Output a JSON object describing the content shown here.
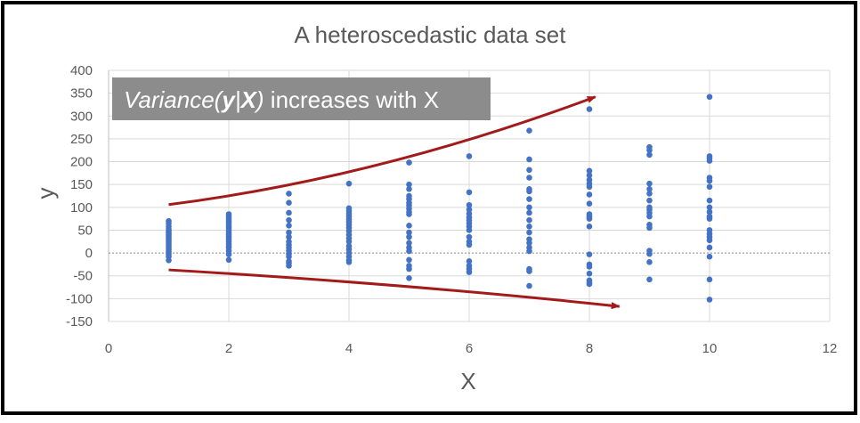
{
  "chart_data": {
    "type": "scatter",
    "title": "A heteroscedastic data set",
    "xlabel": "X",
    "ylabel": "y",
    "xlim": [
      0,
      12
    ],
    "ylim": [
      -150,
      400
    ],
    "x_ticks": [
      0,
      2,
      4,
      6,
      8,
      10,
      12
    ],
    "y_ticks": [
      -150,
      -100,
      -50,
      0,
      50,
      100,
      150,
      200,
      250,
      300,
      350,
      400
    ],
    "grid": true,
    "legend": "none",
    "annotation": {
      "prefix": "Variance(",
      "var_y": "y",
      "sep": "|",
      "var_x": "X",
      "close": ")",
      "suffix": " increases with X"
    },
    "colors": {
      "points": "#4472c4",
      "arrows": "#a31a1a",
      "annotation_box": "#8c8c8c",
      "annotation_text": "#ffffff",
      "grid": "#d9d9d9",
      "title": "#595959",
      "tick_labels": "#595959",
      "frame": "#000000"
    },
    "series": [
      {
        "values": [
          [
            1,
            70
          ],
          [
            1,
            65
          ],
          [
            1,
            58
          ],
          [
            1,
            52
          ],
          [
            1,
            48
          ],
          [
            1,
            44
          ],
          [
            1,
            40
          ],
          [
            1,
            36
          ],
          [
            1,
            32
          ],
          [
            1,
            28
          ],
          [
            1,
            24
          ],
          [
            1,
            20
          ],
          [
            1,
            16
          ],
          [
            1,
            12
          ],
          [
            1,
            8
          ],
          [
            1,
            3
          ],
          [
            1,
            -3
          ],
          [
            1,
            -8
          ],
          [
            1,
            -16
          ],
          [
            2,
            85
          ],
          [
            2,
            80
          ],
          [
            2,
            75
          ],
          [
            2,
            70
          ],
          [
            2,
            65
          ],
          [
            2,
            60
          ],
          [
            2,
            55
          ],
          [
            2,
            50
          ],
          [
            2,
            45
          ],
          [
            2,
            40
          ],
          [
            2,
            35
          ],
          [
            2,
            30
          ],
          [
            2,
            25
          ],
          [
            2,
            20
          ],
          [
            2,
            15
          ],
          [
            2,
            12
          ],
          [
            2,
            5
          ],
          [
            2,
            -3
          ],
          [
            2,
            -15
          ],
          [
            3,
            130
          ],
          [
            3,
            110
          ],
          [
            3,
            88
          ],
          [
            3,
            72
          ],
          [
            3,
            60
          ],
          [
            3,
            45
          ],
          [
            3,
            35
          ],
          [
            3,
            25
          ],
          [
            3,
            18
          ],
          [
            3,
            12
          ],
          [
            3,
            5
          ],
          [
            3,
            -2
          ],
          [
            3,
            -8
          ],
          [
            3,
            -18
          ],
          [
            3,
            -22
          ],
          [
            3,
            -28
          ],
          [
            4,
            152
          ],
          [
            4,
            98
          ],
          [
            4,
            92
          ],
          [
            4,
            86
          ],
          [
            4,
            80
          ],
          [
            4,
            74
          ],
          [
            4,
            68
          ],
          [
            4,
            62
          ],
          [
            4,
            55
          ],
          [
            4,
            48
          ],
          [
            4,
            40
          ],
          [
            4,
            32
          ],
          [
            4,
            25
          ],
          [
            4,
            15
          ],
          [
            4,
            8
          ],
          [
            4,
            0
          ],
          [
            4,
            -8
          ],
          [
            4,
            -16
          ],
          [
            4,
            -20
          ],
          [
            5,
            198
          ],
          [
            5,
            150
          ],
          [
            5,
            140
          ],
          [
            5,
            125
          ],
          [
            5,
            118
          ],
          [
            5,
            110
          ],
          [
            5,
            104
          ],
          [
            5,
            97
          ],
          [
            5,
            90
          ],
          [
            5,
            85
          ],
          [
            5,
            60
          ],
          [
            5,
            45
          ],
          [
            5,
            35
          ],
          [
            5,
            22
          ],
          [
            5,
            12
          ],
          [
            5,
            4
          ],
          [
            5,
            -15
          ],
          [
            5,
            -28
          ],
          [
            5,
            -35
          ],
          [
            5,
            -55
          ],
          [
            6,
            212
          ],
          [
            6,
            133
          ],
          [
            6,
            105
          ],
          [
            6,
            95
          ],
          [
            6,
            86
          ],
          [
            6,
            78
          ],
          [
            6,
            72
          ],
          [
            6,
            65
          ],
          [
            6,
            58
          ],
          [
            6,
            50
          ],
          [
            6,
            35
          ],
          [
            6,
            25
          ],
          [
            6,
            18
          ],
          [
            6,
            -18
          ],
          [
            6,
            -28
          ],
          [
            6,
            -35
          ],
          [
            6,
            -42
          ],
          [
            7,
            268
          ],
          [
            7,
            205
          ],
          [
            7,
            182
          ],
          [
            7,
            165
          ],
          [
            7,
            140
          ],
          [
            7,
            135
          ],
          [
            7,
            118
          ],
          [
            7,
            100
          ],
          [
            7,
            88
          ],
          [
            7,
            72
          ],
          [
            7,
            58
          ],
          [
            7,
            45
          ],
          [
            7,
            30
          ],
          [
            7,
            22
          ],
          [
            7,
            12
          ],
          [
            7,
            4
          ],
          [
            7,
            -35
          ],
          [
            7,
            -40
          ],
          [
            7,
            -72
          ],
          [
            8,
            315
          ],
          [
            8,
            180
          ],
          [
            8,
            170
          ],
          [
            8,
            160
          ],
          [
            8,
            152
          ],
          [
            8,
            145
          ],
          [
            8,
            128
          ],
          [
            8,
            108
          ],
          [
            8,
            85
          ],
          [
            8,
            80
          ],
          [
            8,
            75
          ],
          [
            8,
            58
          ],
          [
            8,
            -3
          ],
          [
            8,
            -25
          ],
          [
            8,
            -30
          ],
          [
            8,
            -45
          ],
          [
            8,
            -60
          ],
          [
            8,
            -65
          ],
          [
            8,
            -68
          ],
          [
            9,
            232
          ],
          [
            9,
            225
          ],
          [
            9,
            215
          ],
          [
            9,
            152
          ],
          [
            9,
            140
          ],
          [
            9,
            130
          ],
          [
            9,
            115
          ],
          [
            9,
            100
          ],
          [
            9,
            95
          ],
          [
            9,
            88
          ],
          [
            9,
            80
          ],
          [
            9,
            62
          ],
          [
            9,
            55
          ],
          [
            9,
            5
          ],
          [
            9,
            -2
          ],
          [
            9,
            -20
          ],
          [
            9,
            -58
          ],
          [
            10,
            342
          ],
          [
            10,
            212
          ],
          [
            10,
            208
          ],
          [
            10,
            202
          ],
          [
            10,
            165
          ],
          [
            10,
            158
          ],
          [
            10,
            145
          ],
          [
            10,
            115
          ],
          [
            10,
            100
          ],
          [
            10,
            90
          ],
          [
            10,
            80
          ],
          [
            10,
            75
          ],
          [
            10,
            50
          ],
          [
            10,
            42
          ],
          [
            10,
            35
          ],
          [
            10,
            28
          ],
          [
            10,
            12
          ],
          [
            10,
            -8
          ],
          [
            10,
            -58
          ],
          [
            10,
            -102
          ]
        ]
      }
    ]
  }
}
